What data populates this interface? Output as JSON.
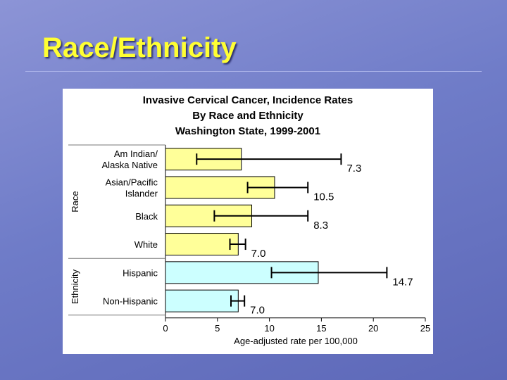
{
  "slide": {
    "title": "Race/Ethnicity"
  },
  "chart_data": {
    "type": "bar",
    "orientation": "horizontal",
    "title_lines": [
      "Invasive Cervical Cancer, Incidence Rates",
      "By Race and Ethnicity",
      "Washington State, 1999-2001"
    ],
    "xlabel": "Age-adjusted rate per 100,000",
    "xlim": [
      0,
      25
    ],
    "xticks": [
      "0",
      "5",
      "10",
      "15",
      "20",
      "25"
    ],
    "groups": [
      {
        "label": "Race",
        "color": "#ffff99"
      },
      {
        "label": "Ethnicity",
        "color": "#ccffff"
      }
    ],
    "bars": [
      {
        "label_lines": [
          "Am Indian/",
          "Alaska Native"
        ],
        "group": "Race",
        "value": 7.3,
        "err_low": 3.0,
        "err_high": 16.9,
        "value_label": "7.3"
      },
      {
        "label_lines": [
          "Asian/Pacific",
          "Islander"
        ],
        "group": "Race",
        "value": 10.5,
        "err_low": 7.9,
        "err_high": 13.7,
        "value_label": "10.5"
      },
      {
        "label_lines": [
          "Black"
        ],
        "group": "Race",
        "value": 8.3,
        "err_low": 4.7,
        "err_high": 13.7,
        "value_label": "8.3"
      },
      {
        "label_lines": [
          "White"
        ],
        "group": "Race",
        "value": 7.0,
        "err_low": 6.2,
        "err_high": 7.7,
        "value_label": "7.0"
      },
      {
        "label_lines": [
          "Hispanic"
        ],
        "group": "Ethnicity",
        "value": 14.7,
        "err_low": 10.2,
        "err_high": 21.3,
        "value_label": "14.7"
      },
      {
        "label_lines": [
          "Non-Hispanic"
        ],
        "group": "Ethnicity",
        "value": 7.0,
        "err_low": 6.3,
        "err_high": 7.6,
        "value_label": "7.0"
      }
    ]
  }
}
